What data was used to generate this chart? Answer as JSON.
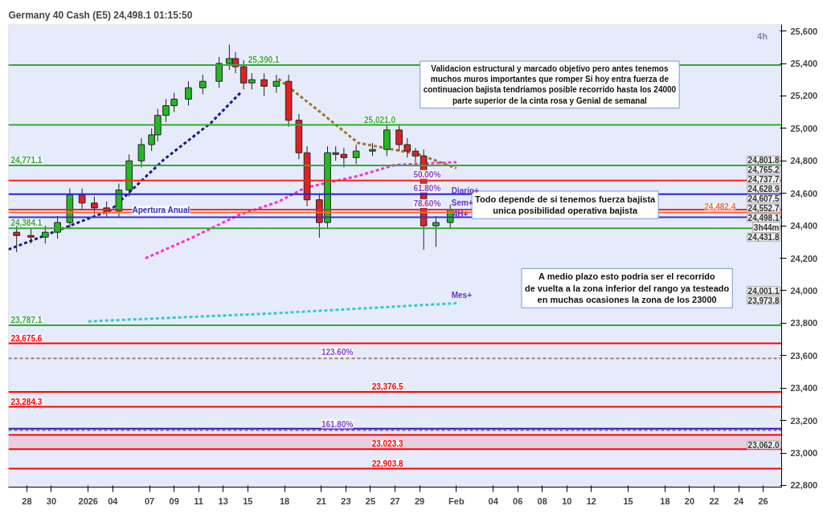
{
  "chart_data": {
    "type": "candlestick",
    "title": "Germany 40 Cash (E5) 24,498.1 01:15:50",
    "x": [
      "2025-12-27T04:00",
      "2025-12-28T08:00",
      "2025-12-29T12:00",
      "2025-12-30T12:00",
      "2025-12-31T12:00",
      "2026-01-01T12:00",
      "2026-01-02T12:00",
      "2026-01-03T12:00",
      "2026-01-04T12:00",
      "2026-01-05T08:00",
      "2026-01-06T08:00",
      "2026-01-07T04:00",
      "2026-01-07T16:00",
      "2026-01-08T08:00",
      "2026-01-09T00:00",
      "2026-01-10T04:00",
      "2026-01-11T08:00",
      "2026-01-12T16:00",
      "2026-01-13T12:00",
      "2026-01-14T00:00",
      "2026-01-14T16:00",
      "2026-01-15T08:00",
      "2026-01-16T08:00",
      "2026-01-17T08:00",
      "2026-01-18T08:00",
      "2026-01-19T04:00",
      "2026-01-19T20:00",
      "2026-01-20T20:00",
      "2026-01-21T12:00",
      "2026-01-22T04:00",
      "2026-01-22T20:00",
      "2026-01-23T20:00",
      "2026-01-25T04:00",
      "2026-01-26T08:00",
      "2026-01-27T08:00",
      "2026-01-28T00:00",
      "2026-01-28T16:00",
      "2026-01-29T08:00",
      "2026-01-30T08:00",
      "2026-01-31T12:00"
    ],
    "ohlc": [
      [
        24360,
        24400,
        24237,
        24340
      ],
      [
        24340,
        24380,
        24290,
        24330
      ],
      [
        24330,
        24400,
        24290,
        24360
      ],
      [
        24360,
        24460,
        24320,
        24420
      ],
      [
        24420,
        24630,
        24380,
        24590
      ],
      [
        24590,
        24630,
        24500,
        24540
      ],
      [
        24540,
        24580,
        24470,
        24510
      ],
      [
        24510,
        24550,
        24450,
        24490
      ],
      [
        24490,
        24660,
        24450,
        24620
      ],
      [
        24620,
        24840,
        24580,
        24800
      ],
      [
        24800,
        24940,
        24760,
        24900
      ],
      [
        24900,
        25000,
        24860,
        24960
      ],
      [
        24960,
        25120,
        24920,
        25080
      ],
      [
        25080,
        25180,
        25040,
        25140
      ],
      [
        25140,
        25220,
        25100,
        25180
      ],
      [
        25180,
        25290,
        25140,
        25250
      ],
      [
        25250,
        25330,
        25210,
        25290
      ],
      [
        25290,
        25440,
        25250,
        25400
      ],
      [
        25400,
        25515,
        25360,
        25430
      ],
      [
        25430,
        25470,
        25340,
        25380
      ],
      [
        25380,
        25420,
        25240,
        25280
      ],
      [
        25280,
        25340,
        25240,
        25300
      ],
      [
        25300,
        25340,
        25200,
        25260
      ],
      [
        25260,
        25330,
        25220,
        25290
      ],
      [
        25290,
        25330,
        25010,
        25050
      ],
      [
        25050,
        25090,
        24810,
        24850
      ],
      [
        24850,
        24890,
        24520,
        24560
      ],
      [
        24560,
        24600,
        24326,
        24420
      ],
      [
        24420,
        24890,
        24380,
        24850
      ],
      [
        24850,
        24890,
        24800,
        24840
      ],
      [
        24840,
        24880,
        24760,
        24820
      ],
      [
        24820,
        24900,
        24780,
        24860
      ],
      [
        24860,
        24910,
        24830,
        24870
      ],
      [
        24870,
        25021,
        24830,
        24990
      ],
      [
        24990,
        25021,
        24860,
        24900
      ],
      [
        24900,
        24940,
        24820,
        24860
      ],
      [
        24860,
        24880,
        24790,
        24830
      ],
      [
        24830,
        24870,
        24252,
        24400
      ],
      [
        24400,
        24460,
        24270,
        24420
      ],
      [
        24420,
        24530,
        24380,
        24498
      ]
    ],
    "series": [
      {
        "type": "line",
        "color": "#1a1a8c",
        "x": [
          "2025-12-26T12:00",
          "2026-01-03T20:00",
          "2026-01-08T04:00",
          "2026-01-12T00:00",
          "2026-01-14T12:00"
        ],
        "values": [
          24254,
          24497,
          24808,
          25034,
          25227
        ]
      },
      {
        "type": "line",
        "color": "#a0752a",
        "x": [
          "2026-01-17T12:00",
          "2026-01-20T20:00",
          "2026-01-24T00:00",
          "2026-01-28T20:00",
          "2026-02-01T00:00"
        ],
        "values": [
          25305,
          25105,
          24910,
          24842,
          24755
        ]
      },
      {
        "type": "line",
        "color": "#ff33cc",
        "x": [
          "2026-01-06T16:00",
          "2026-01-10T08:00",
          "2026-01-14T04:00",
          "2026-01-17T12:00",
          "2026-01-19T16:00",
          "2026-01-24T00:00",
          "2026-01-27T00:00",
          "2026-02-01T00:00"
        ],
        "values": [
          24200,
          24322,
          24463,
          24548,
          24634,
          24707,
          24775,
          24792
        ]
      },
      {
        "type": "line",
        "color": "#33cccc",
        "x": [
          "2026-01-02T00:00",
          "2026-01-17T00:00",
          "2026-02-01T00:00"
        ],
        "values": [
          23811,
          23860,
          23923
        ]
      }
    ],
    "line_style": "dashed",
    "xlim": [
      "2025-12-26T12:00",
      "2026-02-27T12:00"
    ],
    "xticks": [
      {
        "value": "2025-12-28",
        "label": "28"
      },
      {
        "value": "2025-12-30",
        "label": "30"
      },
      {
        "value": "2026-01-02",
        "label": "2026"
      },
      {
        "value": "2026-01-04",
        "label": "04"
      },
      {
        "value": "2026-01-07",
        "label": "07"
      },
      {
        "value": "2026-01-09",
        "label": "09"
      },
      {
        "value": "2026-01-11",
        "label": "11"
      },
      {
        "value": "2026-01-13",
        "label": "13"
      },
      {
        "value": "2026-01-15",
        "label": "15"
      },
      {
        "value": "2026-01-18",
        "label": "18"
      },
      {
        "value": "2026-01-21",
        "label": "21"
      },
      {
        "value": "2026-01-23",
        "label": "23"
      },
      {
        "value": "2026-01-25",
        "label": "25"
      },
      {
        "value": "2026-01-27",
        "label": "27"
      },
      {
        "value": "2026-01-29",
        "label": "29"
      },
      {
        "value": "2026-02-01",
        "label": "Feb"
      },
      {
        "value": "2026-02-04",
        "label": "04"
      },
      {
        "value": "2026-02-06",
        "label": "06"
      },
      {
        "value": "2026-02-08",
        "label": "08"
      },
      {
        "value": "2026-02-10",
        "label": "10"
      },
      {
        "value": "2026-02-12",
        "label": "12"
      },
      {
        "value": "2026-02-15",
        "label": "15"
      },
      {
        "value": "2026-02-18",
        "label": "18"
      },
      {
        "value": "2026-02-20",
        "label": "20"
      },
      {
        "value": "2026-02-22",
        "label": "22"
      },
      {
        "value": "2026-02-24",
        "label": "24"
      },
      {
        "value": "2026-02-26",
        "label": "26"
      }
    ],
    "ylim": [
      22790,
      25640
    ],
    "yticks": [
      {
        "value": 22800,
        "label": "22,800"
      },
      {
        "value": 23000,
        "label": "23,000"
      },
      {
        "value": 23200,
        "label": "23,200"
      },
      {
        "value": 23400,
        "label": "23,400"
      },
      {
        "value": 23600,
        "label": "23,600"
      },
      {
        "value": 23800,
        "label": "23,800"
      },
      {
        "value": 24000,
        "label": "24,000"
      },
      {
        "value": 24200,
        "label": "24,200"
      },
      {
        "value": 24400,
        "label": "24,400"
      },
      {
        "value": 24600,
        "label": "24,600"
      },
      {
        "value": 24800,
        "label": "24,800"
      },
      {
        "value": 25000,
        "label": "25,000"
      },
      {
        "value": 25200,
        "label": "25,200"
      },
      {
        "value": 25400,
        "label": "25,400"
      },
      {
        "value": 25600,
        "label": "25,600"
      }
    ],
    "grid": false,
    "ref_lines": [
      {
        "axis": "y",
        "value": 25390.1,
        "label": "25,390.1",
        "color": "#33aa33"
      },
      {
        "axis": "y",
        "value": 25021.0,
        "label": "25,021.0",
        "color": "#33aa33"
      },
      {
        "axis": "y",
        "value": 24771.1,
        "label": "24,771.1",
        "color": "#33aa33"
      },
      {
        "axis": "y",
        "value": 24679,
        "color": "#ff2222"
      },
      {
        "axis": "y",
        "value": 24595,
        "color": "#2222dd"
      },
      {
        "axis": "y",
        "value": 24500,
        "color": "#ff2222"
      },
      {
        "axis": "y",
        "value": 24482.4,
        "label": "24,482.4",
        "color": "#ff6633"
      },
      {
        "axis": "y",
        "value": 24453,
        "label": "Apertura Anual",
        "color": "#3333cc"
      },
      {
        "axis": "y",
        "value": 24384.1,
        "label": "24,384.1",
        "color": "#33aa33"
      },
      {
        "axis": "y",
        "value": 23787.1,
        "label": "23,787.1",
        "color": "#33aa33"
      },
      {
        "axis": "y",
        "value": 23675.6,
        "label": "23,675.6",
        "color": "#ff0000"
      },
      {
        "axis": "y",
        "value": 23583,
        "color": "#a08070",
        "line_style": "dashed"
      },
      {
        "axis": "y",
        "value": 23376.5,
        "label": "23,376.5",
        "color": "#ff0000"
      },
      {
        "axis": "y",
        "value": 23284.3,
        "label": "23,284.3",
        "color": "#ff0000"
      },
      {
        "axis": "y",
        "value": 23150,
        "color": "#2222aa"
      },
      {
        "axis": "y",
        "value": 23141,
        "color": "#8844cc",
        "line_style": "dashed"
      },
      {
        "axis": "y",
        "value": 23112,
        "color": "#ff0000"
      },
      {
        "axis": "y",
        "value": 23023.3,
        "label": "23,023.3",
        "color": "#ff0000"
      },
      {
        "axis": "y",
        "value": 22903.8,
        "label": "22,903.8",
        "color": "#ff0000"
      }
    ],
    "bands": [
      {
        "axis": "y",
        "from": 23023.3,
        "to": 23112,
        "color": "#e8c8d8"
      }
    ],
    "annotations": [
      "Validacion estructural y marcado objetivo pero antes tenemos\nmuchos muros importantes que romper Si hoy entra fuerza de\ncontinuacion bajista tendriamos posible recorrido hasta los 24000\nparte superior de la cinta rosa y Genial de semanal",
      "Todo depende de si tenemos fuerza bajista\nunica posibilidad operativa bajista",
      "A medio plazo esto podria ser el recorrido\nde vuelta a la zona inferior del rango ya testeado\nen muchas ocasiones la zona de los 23000",
      "4h",
      "Diario+",
      "Sem+",
      "4H+",
      "Mes+",
      "24,801.8",
      "24,765.2",
      "24,737.7",
      "24,628.9",
      "24,607.5",
      "24,552.7",
      "24,498.1",
      "3h44m",
      "24,431.8",
      "24,001.1",
      "23,973.8",
      "23,062.0",
      {
        "text": "50.00%",
        "x": "2026-01-28T12:00",
        "y": 24679
      },
      {
        "text": "61.80%",
        "x": "2026-01-28T12:00",
        "y": 24595
      },
      {
        "text": "78.60%",
        "x": "2026-01-28T12:00",
        "y": 24500
      },
      {
        "text": "123.60%",
        "x": "2026-01-21T00:00",
        "y": 23583
      },
      {
        "text": "161.80%",
        "x": "2026-01-21T00:00",
        "y": 23141
      }
    ]
  }
}
